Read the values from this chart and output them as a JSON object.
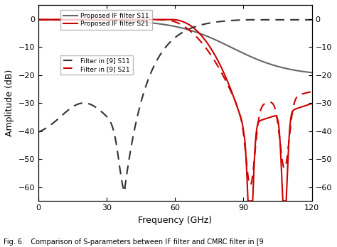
{
  "title": "",
  "xlabel": "Frequency (GHz)",
  "ylabel": "Amplitude (dB)",
  "xlim": [
    0,
    120
  ],
  "ylim": [
    -65,
    5
  ],
  "yticks": [
    0,
    -10,
    -20,
    -30,
    -40,
    -50,
    -60
  ],
  "xticks": [
    0,
    30,
    60,
    90,
    120
  ],
  "figcaption": "Fig. 6.   Comparison of S-parameters between IF filter and CMRC filter in [9",
  "legend": [
    {
      "label": "Proposed IF filter S11",
      "color": "#666666",
      "linestyle": "solid",
      "linewidth": 1.5
    },
    {
      "label": "Proposed IF filter S21",
      "color": "#cc0000",
      "linestyle": "solid",
      "linewidth": 1.5
    },
    {
      "label": "Filter in [9] S11",
      "color": "#333333",
      "linestyle": "dashed",
      "linewidth": 1.5
    },
    {
      "label": "Filter in [9] S21",
      "color": "#cc0000",
      "linestyle": "dashed",
      "linewidth": 1.5
    }
  ],
  "background_color": "#ffffff",
  "grid": false
}
